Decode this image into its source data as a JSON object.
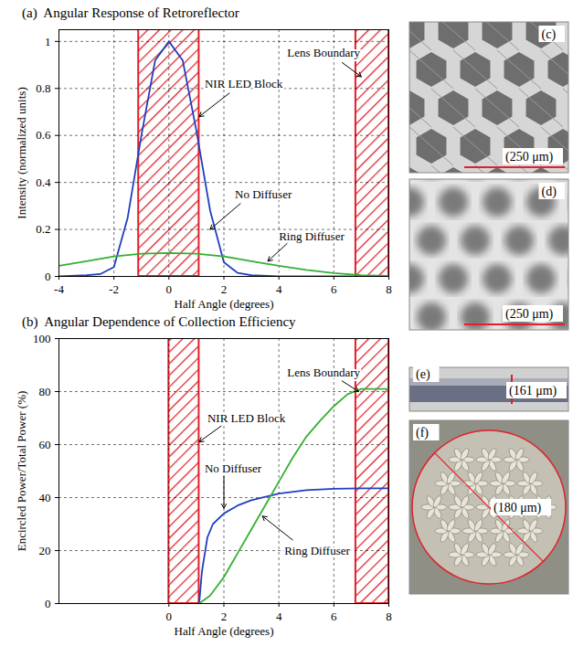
{
  "chart_data": [
    {
      "type": "line",
      "title": "(a)  Angular Response of Retroreflector",
      "x_label": "Half Angle (degrees)",
      "y_label": "Intensity (normalized units)",
      "xlim": [
        -4,
        8
      ],
      "xticks": [
        -4,
        -2,
        0,
        2,
        4,
        6,
        8
      ],
      "ylim": [
        0,
        1.05
      ],
      "yticks": [
        0,
        0.2,
        0.4,
        0.6,
        0.8,
        1
      ],
      "grid": true,
      "series": [
        {
          "name": "No Diffuser",
          "color": "#1f3fbf",
          "x": [
            -4,
            -3,
            -2.5,
            -2,
            -1.5,
            -1,
            -0.5,
            0,
            0.5,
            1,
            1.5,
            2,
            2.5,
            3,
            4,
            8
          ],
          "values": [
            0,
            0.005,
            0.01,
            0.04,
            0.25,
            0.6,
            0.92,
            1.0,
            0.92,
            0.62,
            0.28,
            0.06,
            0.015,
            0.005,
            0,
            0
          ]
        },
        {
          "name": "Ring Diffuser",
          "color": "#33b033",
          "x": [
            -4,
            -3,
            -2,
            -1,
            0,
            1,
            2,
            3,
            4,
            5,
            6,
            7,
            8
          ],
          "values": [
            0.045,
            0.065,
            0.085,
            0.097,
            0.1,
            0.097,
            0.085,
            0.065,
            0.045,
            0.028,
            0.014,
            0.005,
            0.002
          ]
        }
      ],
      "regions": [
        {
          "label": "NIR LED Block",
          "x": [
            -1.1,
            1.1
          ],
          "color": "#e0202a"
        },
        {
          "label": "Lens Boundary",
          "x": [
            6.8,
            8
          ],
          "color": "#e0202a"
        }
      ],
      "annotations": [
        {
          "text": "NIR LED Block",
          "x": 1.3,
          "y": 0.82,
          "arrow": [
            2.2,
            0.78,
            1.1,
            0.68
          ]
        },
        {
          "text": "No Diffuser",
          "x": 2.4,
          "y": 0.35,
          "arrow": [
            2.6,
            0.31,
            1.5,
            0.2
          ]
        },
        {
          "text": "Ring Diffuser",
          "x": 4.0,
          "y": 0.17,
          "arrow": [
            4.3,
            0.14,
            3.6,
            0.065
          ]
        },
        {
          "text": "Lens Boundary",
          "x": 4.3,
          "y": 0.95,
          "arrow": [
            6.3,
            0.91,
            7.0,
            0.85
          ]
        }
      ]
    },
    {
      "type": "line",
      "title": "(b)  Angular Dependence of Collection Efficiency",
      "x_label": "Half Angle (degrees)",
      "y_label": "Encircled Power/Total Power (%)",
      "xlim": [
        -4,
        8
      ],
      "xticks": [
        0,
        2,
        4,
        6,
        8
      ],
      "ylim": [
        0,
        100
      ],
      "yticks": [
        0,
        20,
        40,
        60,
        80,
        100
      ],
      "grid": true,
      "series": [
        {
          "name": "No Diffuser",
          "color": "#1f3fbf",
          "x": [
            1.1,
            1.2,
            1.4,
            1.6,
            2,
            2.5,
            3,
            4,
            5,
            6,
            7,
            8
          ],
          "values": [
            0,
            12,
            25,
            30,
            34,
            37,
            39,
            41.5,
            42.8,
            43.3,
            43.5,
            43.5
          ]
        },
        {
          "name": "Ring Diffuser",
          "color": "#33b033",
          "x": [
            1.1,
            1.5,
            2,
            2.5,
            3,
            3.5,
            4,
            4.5,
            5,
            5.5,
            6,
            6.5,
            7,
            7.5,
            8
          ],
          "values": [
            0,
            3,
            10,
            19,
            28,
            37,
            46,
            55,
            63,
            69,
            74.5,
            79,
            81,
            81,
            81
          ]
        }
      ],
      "regions": [
        {
          "label": "NIR LED Block",
          "x": [
            0,
            1.1
          ],
          "color": "#e0202a"
        },
        {
          "label": "Lens Boundary",
          "x": [
            6.8,
            8
          ],
          "color": "#e0202a"
        }
      ],
      "annotations": [
        {
          "text": "Lens Boundary",
          "x": 4.3,
          "y": 87,
          "arrow": [
            6.3,
            84,
            6.9,
            80
          ]
        },
        {
          "text": "NIR LED Block",
          "x": 1.4,
          "y": 70,
          "arrow": [
            1.9,
            67,
            1.1,
            61
          ]
        },
        {
          "text": "No Diffuser",
          "x": 1.3,
          "y": 51,
          "arrow": [
            2.0,
            48,
            2.0,
            36
          ]
        },
        {
          "text": "Ring Diffuser",
          "x": 4.2,
          "y": 20,
          "arrow": [
            4.5,
            24,
            3.4,
            33
          ]
        }
      ]
    }
  ],
  "images": [
    {
      "label": "(c)",
      "scale_label": "(250 μm)"
    },
    {
      "label": "(d)",
      "scale_label": "(250 μm)"
    },
    {
      "label": "(e)",
      "scale_label": "(161 μm)"
    },
    {
      "label": "(f)",
      "scale_label": "(180 μm)"
    }
  ]
}
